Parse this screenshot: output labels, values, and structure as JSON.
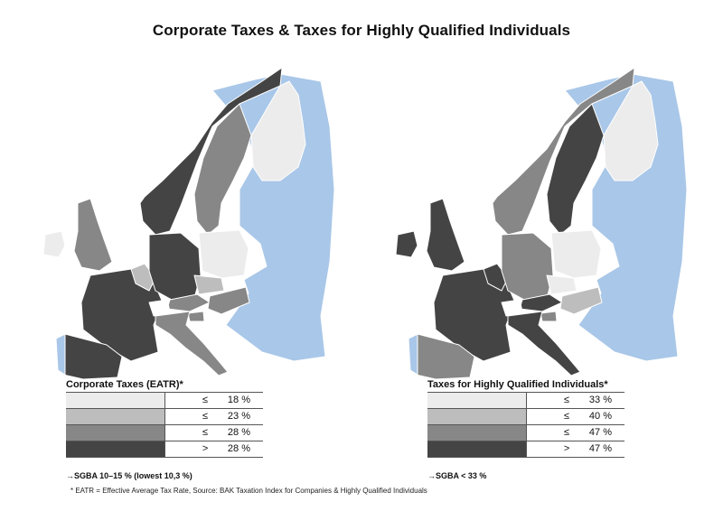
{
  "title": "Corporate Taxes & Taxes for Highly Qualified Individuals",
  "colors": {
    "c1": "#ececec",
    "c2": "#bdbdbd",
    "c3": "#878787",
    "c4": "#444444",
    "sea_outside": "#a9c7e8",
    "switzerland": "#ffffff"
  },
  "left": {
    "legend_title": "Corporate Taxes (EATR)",
    "legend_asterisk": "*",
    "rows": [
      {
        "sym": "≤",
        "value": "18 %",
        "color": "c1"
      },
      {
        "sym": "≤",
        "value": "23 %",
        "color": "c2"
      },
      {
        "sym": "≤",
        "value": "28 %",
        "color": "c3"
      },
      {
        "sym": ">",
        "value": "28 %",
        "color": "c4"
      }
    ],
    "note": "→SGBA 10–15 % (lowest 10,3 %)",
    "countries": {
      "norway": "c4",
      "sweden": "c3",
      "finland": "c1",
      "uk": "c3",
      "ireland": "c1",
      "france": "c4",
      "spain": "c4",
      "portugal": "outside",
      "germany": "c4",
      "benelux": "c2",
      "denmark": "c2",
      "poland": "c1",
      "czech": "c2",
      "austria": "c3",
      "italy": "c3",
      "hungary": "c3",
      "slovenia": "c3",
      "east": "outside"
    }
  },
  "right": {
    "legend_title": "Taxes for Highly Qualified Individuals",
    "legend_asterisk": "*",
    "rows": [
      {
        "sym": "≤",
        "value": "33 %",
        "color": "c1"
      },
      {
        "sym": "≤",
        "value": "40 %",
        "color": "c2"
      },
      {
        "sym": "≤",
        "value": "47 %",
        "color": "c3"
      },
      {
        "sym": ">",
        "value": "47 %",
        "color": "c4"
      }
    ],
    "note": "→SGBA < 33 %",
    "countries": {
      "norway": "c3",
      "sweden": "c4",
      "finland": "c1",
      "uk": "c4",
      "ireland": "c4",
      "france": "c4",
      "spain": "c3",
      "portugal": "outside",
      "germany": "c3",
      "benelux": "c4",
      "denmark": "c4",
      "poland": "c1",
      "czech": "c1",
      "austria": "c4",
      "italy": "c4",
      "hungary": "c2",
      "slovenia": "c3",
      "east": "outside"
    }
  },
  "footnote": "* EATR = Effective Average Tax Rate, Source: BAK Taxation Index for Companies & Highly Qualified Individuals"
}
